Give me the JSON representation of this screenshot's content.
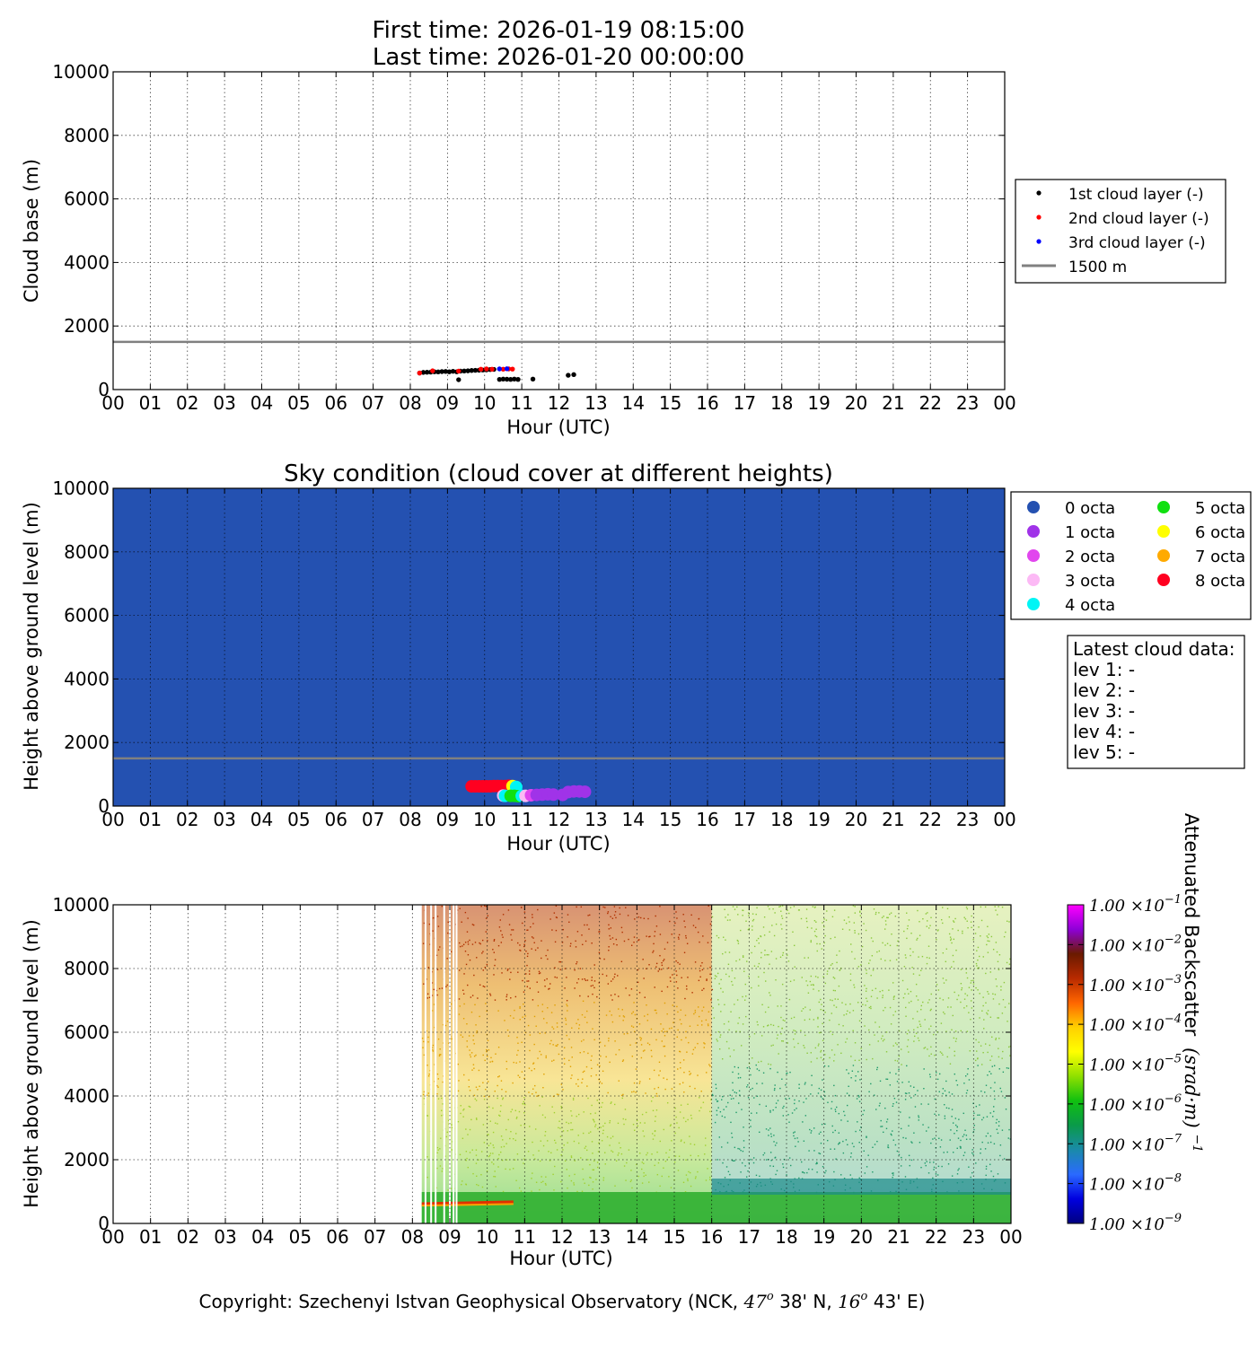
{
  "header": {
    "first_time": "First time: 2026-01-19 08:15:00",
    "last_time": "Last time: 2026-01-20 00:00:00"
  },
  "hour_ticks": [
    "00",
    "01",
    "02",
    "03",
    "04",
    "05",
    "06",
    "07",
    "08",
    "09",
    "10",
    "11",
    "12",
    "13",
    "14",
    "15",
    "16",
    "17",
    "18",
    "19",
    "20",
    "21",
    "22",
    "23",
    "00"
  ],
  "footer": {
    "copyright": "Copyright: Szechenyi Istvan Geophysical Observatory (NCK, 47° 38' N, 16° 43' E)",
    "copyright_prefix": "Copyright: Szechenyi Istvan Geophysical Observatory (NCK, ",
    "lat_deg": "47",
    "lat_min": " 38' N, ",
    "lon_deg": "16",
    "lon_min": " 43' E)"
  },
  "chart_data": [
    {
      "id": "cloud-base",
      "type": "scatter",
      "title": "",
      "xlabel": "Hour (UTC)",
      "ylabel": "Cloud base (m)",
      "xlim": [
        0,
        24
      ],
      "ylim": [
        0,
        10000
      ],
      "yticks": [
        "0",
        "2000",
        "4000",
        "6000",
        "8000",
        "10000"
      ],
      "grid": true,
      "legend_position": "right",
      "reference_line": {
        "name": "1500 m",
        "y": 1500,
        "color": "#808080"
      },
      "series": [
        {
          "name": "1st cloud layer (-)",
          "color": "#000000",
          "points": [
            [
              8.25,
              520
            ],
            [
              8.35,
              540
            ],
            [
              8.45,
              545
            ],
            [
              8.55,
              550
            ],
            [
              8.65,
              560
            ],
            [
              8.75,
              555
            ],
            [
              8.85,
              565
            ],
            [
              8.95,
              570
            ],
            [
              9.05,
              560
            ],
            [
              9.15,
              575
            ],
            [
              9.25,
              560
            ],
            [
              9.35,
              580
            ],
            [
              9.45,
              585
            ],
            [
              9.55,
              590
            ],
            [
              9.65,
              600
            ],
            [
              9.75,
              605
            ],
            [
              9.85,
              610
            ],
            [
              9.95,
              615
            ],
            [
              10.05,
              620
            ],
            [
              10.15,
              630
            ],
            [
              10.25,
              635
            ],
            [
              10.4,
              320
            ],
            [
              10.5,
              330
            ],
            [
              10.6,
              325
            ],
            [
              10.7,
              320
            ],
            [
              10.8,
              330
            ],
            [
              10.9,
              320
            ],
            [
              9.3,
              310
            ],
            [
              11.3,
              330
            ],
            [
              12.25,
              450
            ],
            [
              12.4,
              470
            ]
          ]
        },
        {
          "name": "2nd cloud layer (-)",
          "color": "#ff0000",
          "points": [
            [
              8.25,
              520
            ],
            [
              8.6,
              590
            ],
            [
              9.3,
              580
            ],
            [
              9.9,
              640
            ],
            [
              10.05,
              650
            ],
            [
              10.2,
              640
            ],
            [
              10.5,
              640
            ],
            [
              10.65,
              650
            ],
            [
              10.75,
              645
            ]
          ]
        },
        {
          "name": "3rd cloud layer (-)",
          "color": "#0000ff",
          "points": [
            [
              10.4,
              650
            ],
            [
              10.6,
              655
            ]
          ]
        }
      ]
    },
    {
      "id": "sky-condition",
      "type": "scatter",
      "title": "Sky condition (cloud cover at different heights)",
      "xlabel": "Hour (UTC)",
      "ylabel": "Height above ground level (m)",
      "xlim": [
        0,
        24
      ],
      "ylim": [
        0,
        10000
      ],
      "yticks": [
        "0",
        "2000",
        "4000",
        "6000",
        "8000",
        "10000"
      ],
      "grid": true,
      "background_color": "#2451b1",
      "reference_line": {
        "y": 1500,
        "color": "#808080"
      },
      "legend": [
        {
          "label": "0 octa",
          "color": "#2451b1"
        },
        {
          "label": "1 octa",
          "color": "#a033e8"
        },
        {
          "label": "2 octa",
          "color": "#e146ee"
        },
        {
          "label": "3 octa",
          "color": "#fcb9f5"
        },
        {
          "label": "4 octa",
          "color": "#00f5f5"
        },
        {
          "label": "5 octa",
          "color": "#10e010"
        },
        {
          "label": "6 octa",
          "color": "#ffff00"
        },
        {
          "label": "7 octa",
          "color": "#ffaa00"
        },
        {
          "label": "8 octa",
          "color": "#ff0020"
        }
      ],
      "points": [
        {
          "octa": 8,
          "x": 9.65,
          "y": 620
        },
        {
          "octa": 8,
          "x": 9.75,
          "y": 620
        },
        {
          "octa": 8,
          "x": 9.85,
          "y": 620
        },
        {
          "octa": 8,
          "x": 9.95,
          "y": 620
        },
        {
          "octa": 8,
          "x": 10.05,
          "y": 620
        },
        {
          "octa": 8,
          "x": 10.15,
          "y": 620
        },
        {
          "octa": 8,
          "x": 10.25,
          "y": 630
        },
        {
          "octa": 8,
          "x": 10.35,
          "y": 630
        },
        {
          "octa": 8,
          "x": 10.45,
          "y": 630
        },
        {
          "octa": 8,
          "x": 10.55,
          "y": 630
        },
        {
          "octa": 8,
          "x": 10.65,
          "y": 640
        },
        {
          "octa": 6,
          "x": 10.75,
          "y": 630
        },
        {
          "octa": 4,
          "x": 10.85,
          "y": 600
        },
        {
          "octa": 3,
          "x": 10.5,
          "y": 330
        },
        {
          "octa": 4,
          "x": 10.55,
          "y": 320
        },
        {
          "octa": 5,
          "x": 10.7,
          "y": 320
        },
        {
          "octa": 5,
          "x": 10.8,
          "y": 320
        },
        {
          "octa": 5,
          "x": 10.9,
          "y": 310
        },
        {
          "octa": 4,
          "x": 11.0,
          "y": 320
        },
        {
          "octa": 3,
          "x": 11.1,
          "y": 320
        },
        {
          "octa": 2,
          "x": 11.25,
          "y": 340
        },
        {
          "octa": 1,
          "x": 11.4,
          "y": 350
        },
        {
          "octa": 1,
          "x": 11.55,
          "y": 360
        },
        {
          "octa": 1,
          "x": 11.7,
          "y": 370
        },
        {
          "octa": 1,
          "x": 11.85,
          "y": 360
        },
        {
          "octa": 1,
          "x": 12.1,
          "y": 350
        },
        {
          "octa": 1,
          "x": 12.25,
          "y": 440
        },
        {
          "octa": 1,
          "x": 12.4,
          "y": 460
        },
        {
          "octa": 1,
          "x": 12.55,
          "y": 460
        },
        {
          "octa": 1,
          "x": 12.7,
          "y": 450
        }
      ],
      "latest_cloud_data": {
        "title": "Latest cloud data:",
        "lines": [
          "lev 1: -",
          "lev 2: -",
          "lev 3: -",
          "lev 4: -",
          "lev 5: -"
        ]
      }
    },
    {
      "id": "backscatter",
      "type": "heatmap",
      "title": "",
      "xlabel": "Hour (UTC)",
      "ylabel": "Height above ground level (m)",
      "xlim": [
        0,
        24
      ],
      "ylim": [
        0,
        10000
      ],
      "yticks": [
        "0",
        "2000",
        "4000",
        "6000",
        "8000",
        "10000"
      ],
      "grid": true,
      "data_start_hour": 8.25,
      "colorbar": {
        "label": "Attenuated Backscatter",
        "unit": "(srad·m)",
        "unit_exponent": "−1",
        "mantissa": "1.00",
        "times": "×10",
        "ticks": [
          {
            "exp": "−1"
          },
          {
            "exp": "−2"
          },
          {
            "exp": "−3"
          },
          {
            "exp": "−4"
          },
          {
            "exp": "−5"
          },
          {
            "exp": "−6"
          },
          {
            "exp": "−7"
          },
          {
            "exp": "−8"
          },
          {
            "exp": "−9"
          }
        ],
        "colors": [
          "#ff00ff",
          "#8e00d8",
          "#6a1a00",
          "#b82a00",
          "#ff6600",
          "#ffd000",
          "#ffff00",
          "#8fe000",
          "#10c010",
          "#0a9a4a",
          "#1a8aaa",
          "#2a6aff",
          "#0000e0",
          "#000080"
        ]
      }
    }
  ]
}
